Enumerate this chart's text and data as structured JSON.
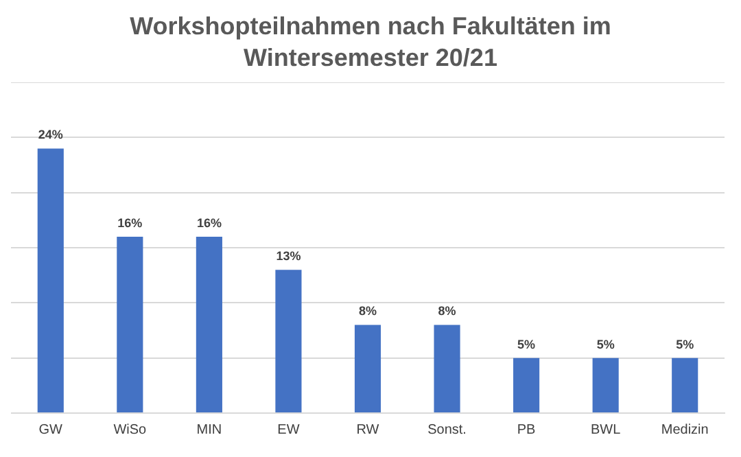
{
  "chart_data": {
    "type": "bar",
    "title": "Workshopteilnahmen nach Fakultäten im Wintersemester 20/21",
    "categories": [
      "GW",
      "WiSo",
      "MIN",
      "EW",
      "RW",
      "Sonst.",
      "PB",
      "BWL",
      "Medizin"
    ],
    "values": [
      24,
      16,
      16,
      13,
      8,
      8,
      5,
      5,
      5
    ],
    "value_labels": [
      "24%",
      "16%",
      "16%",
      "13%",
      "8%",
      "8%",
      "5%",
      "5%",
      "5%"
    ],
    "color": "#4472c4",
    "ylim": [
      0,
      30
    ],
    "yticks": [
      {
        "value": 0,
        "label": null
      },
      {
        "value": 5,
        "label": null
      },
      {
        "value": 10,
        "label": null
      },
      {
        "value": 15,
        "label": null
      },
      {
        "value": 20,
        "label": null
      },
      {
        "value": 25,
        "label": null
      },
      {
        "value": 30,
        "label": null
      }
    ],
    "grid": "y",
    "legend": false
  }
}
